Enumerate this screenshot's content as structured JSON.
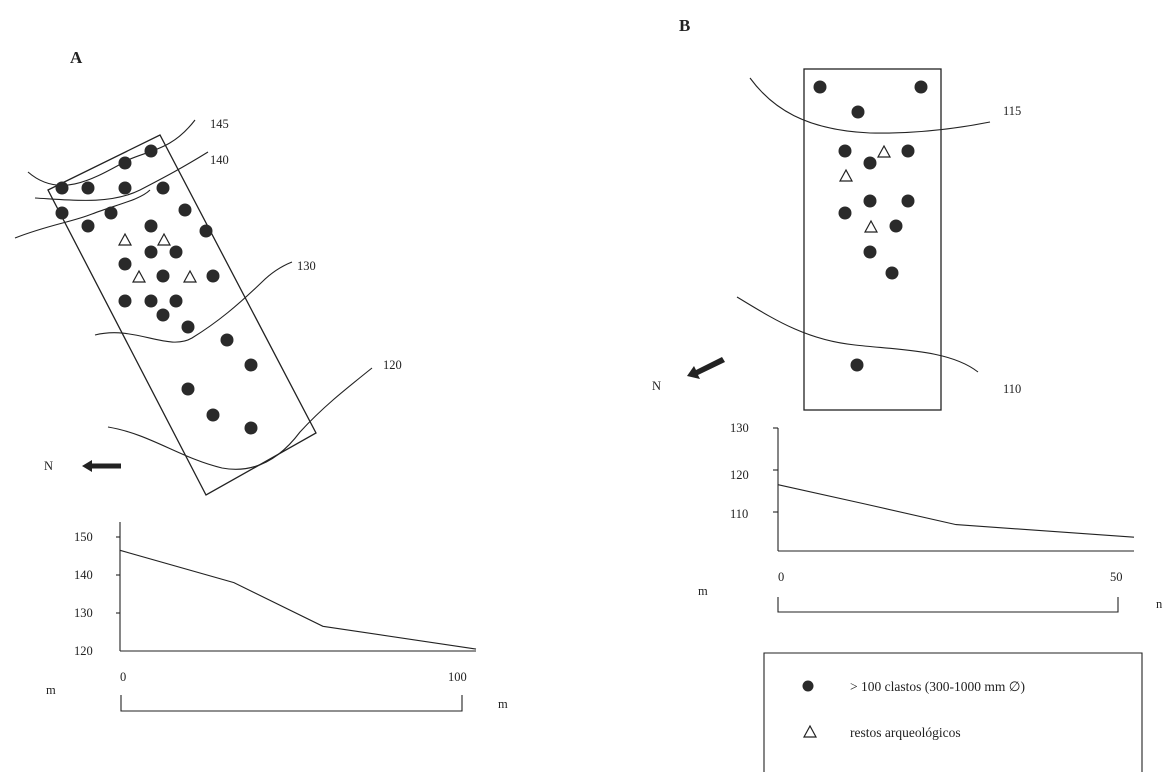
{
  "panelA": {
    "label": "A",
    "contours": [
      "145",
      "140",
      "130",
      "120"
    ],
    "north_label": "N",
    "profile": {
      "y_ticks": [
        "150",
        "140",
        "130",
        "120"
      ],
      "y_unit": "m",
      "x_start": "0",
      "x_end": "100",
      "x_unit": "m",
      "elevations": [
        146.5,
        138,
        126.5,
        120.5
      ],
      "distances": [
        0,
        32,
        57,
        100
      ],
      "y_range": [
        120,
        150
      ],
      "x_range": [
        0,
        100
      ]
    }
  },
  "panelB": {
    "label": "B",
    "contours": [
      "115",
      "110"
    ],
    "north_label": "N",
    "profile": {
      "y_ticks": [
        "130",
        "120",
        "110"
      ],
      "y_unit": "m",
      "x_start": "0",
      "x_end": "50",
      "x_unit": "n",
      "elevations": [
        116.5,
        112,
        107,
        104
      ],
      "distances": [
        0,
        12,
        25,
        50
      ],
      "y_range": [
        100,
        130
      ],
      "x_range": [
        0,
        50
      ]
    }
  },
  "legend": {
    "items": [
      {
        "symbol": "filled-circle",
        "text": "> 100 clastos (300-1000 mm ∅)"
      },
      {
        "symbol": "open-triangle",
        "text": "restos arqueológicos"
      }
    ]
  }
}
